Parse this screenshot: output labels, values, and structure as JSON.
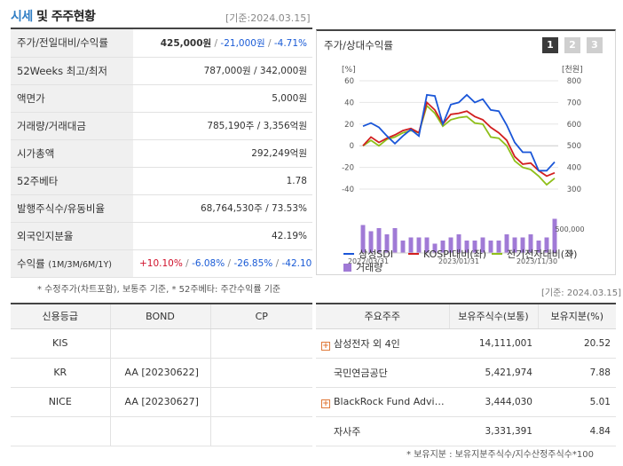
{
  "header": {
    "title_accent": "시세",
    "title_rest": " 및 주주현황",
    "date": "[기준:2024.03.15]"
  },
  "stats": {
    "price_label": "주가/전일대비/수익률",
    "price": "425,000원",
    "change": "-21,000원",
    "change_pct": "-4.71%",
    "w52_label": "52Weeks 최고/최저",
    "w52_value": "787,000원 / 342,000원",
    "par_label": "액면가",
    "par_value": "5,000원",
    "volume_label": "거래량/거래대금",
    "volume_value": "785,190주 / 3,356억원",
    "mcap_label": "시가총액",
    "mcap_value": "292,249억원",
    "beta_label": "52주베타",
    "beta_value": "1.78",
    "shares_label": "발행주식수/유동비율",
    "shares_value": "68,764,530주 / 73.53%",
    "foreign_label": "외국인지분율",
    "foreign_value": "42.19%",
    "return_label": "수익률",
    "return_periods": "(1M/3M/6M/1Y)",
    "return_1m": "+10.10%",
    "return_3m": "-6.08%",
    "return_6m": "-26.85%",
    "return_1y": "-42.10%",
    "slash": " / "
  },
  "footnote1": "* 수정주가(차트포함), 보통주 기준, * 52주베타: 주간수익률 기준",
  "chart_panel": {
    "title": "주가/상대수익률",
    "tabs": [
      "1",
      "2",
      "3"
    ]
  },
  "chart_data": {
    "type": "line",
    "left_axis_unit": "[%]",
    "right_axis_unit": "[천원]",
    "left_ticks": [
      60,
      40,
      20,
      0,
      -20,
      -40
    ],
    "right_ticks": [
      800,
      700,
      600,
      500,
      400,
      300
    ],
    "volume_tick_labels": [
      "500,000",
      "0"
    ],
    "x_tick_labels": [
      "2022/03/31",
      "2023/01/31",
      "2023/11/30"
    ],
    "ylim_left": [
      -40,
      60
    ],
    "legend": [
      {
        "name": "삼성SDI",
        "color": "#1a56d8"
      },
      {
        "name": "KOSPI대비(좌)",
        "color": "#d21f1f"
      },
      {
        "name": "전기전자대비(좌)",
        "color": "#8fbf1a"
      },
      {
        "name": "거래량",
        "color": "#a07ad6"
      }
    ],
    "series": [
      {
        "name": "삼성SDI",
        "values": [
          18,
          21,
          17,
          9,
          2,
          9,
          15,
          9,
          47,
          46,
          20,
          38,
          40,
          47,
          40,
          43,
          33,
          32,
          19,
          3,
          -6,
          -6,
          -23,
          -23,
          -15
        ]
      },
      {
        "name": "KOSPI대비(좌)",
        "values": [
          0,
          8,
          3,
          7,
          10,
          14,
          16,
          12,
          40,
          33,
          20,
          29,
          30,
          32,
          27,
          24,
          17,
          12,
          5,
          -10,
          -17,
          -16,
          -23,
          -28,
          -25
        ]
      },
      {
        "name": "전기전자대비(좌)",
        "values": [
          0,
          5,
          0,
          6,
          8,
          12,
          14,
          12,
          37,
          30,
          18,
          24,
          26,
          27,
          21,
          20,
          8,
          7,
          0,
          -14,
          -20,
          -22,
          -28,
          -36,
          -30
        ]
      }
    ],
    "volume": [
      9,
      7,
      8,
      6,
      8,
      4,
      5,
      5,
      5,
      3,
      4,
      5,
      6,
      4,
      4,
      5,
      4,
      4,
      6,
      5,
      5,
      6,
      4,
      5,
      11
    ]
  },
  "footnote_date2": "[기준: 2024.03.15]",
  "credit": {
    "headers": [
      "신용등급",
      "BOND",
      "CP"
    ],
    "rows": [
      {
        "agency": "KIS",
        "bond": "",
        "cp": ""
      },
      {
        "agency": "KR",
        "bond": "AA   [20230622]",
        "cp": ""
      },
      {
        "agency": "NICE",
        "bond": "AA   [20230627]",
        "cp": ""
      },
      {
        "agency": "",
        "bond": "",
        "cp": ""
      }
    ]
  },
  "holders": {
    "headers": [
      "주요주주",
      "보유주식수(보통)",
      "보유지분(%)"
    ],
    "rows": [
      {
        "name": "삼성전자 외 4인",
        "shares": "14,111,001",
        "pct": "20.52",
        "expandable": true
      },
      {
        "name": "국민연금공단",
        "shares": "5,421,974",
        "pct": "7.88",
        "expandable": false
      },
      {
        "name": "BlackRock Fund Advis…",
        "shares": "3,444,030",
        "pct": "5.01",
        "expandable": true
      },
      {
        "name": "자사주",
        "shares": "3,331,391",
        "pct": "4.84",
        "expandable": false
      }
    ]
  },
  "footnote3": "* 보유지분 : 보유지분주식수/지수산정주식수*100"
}
